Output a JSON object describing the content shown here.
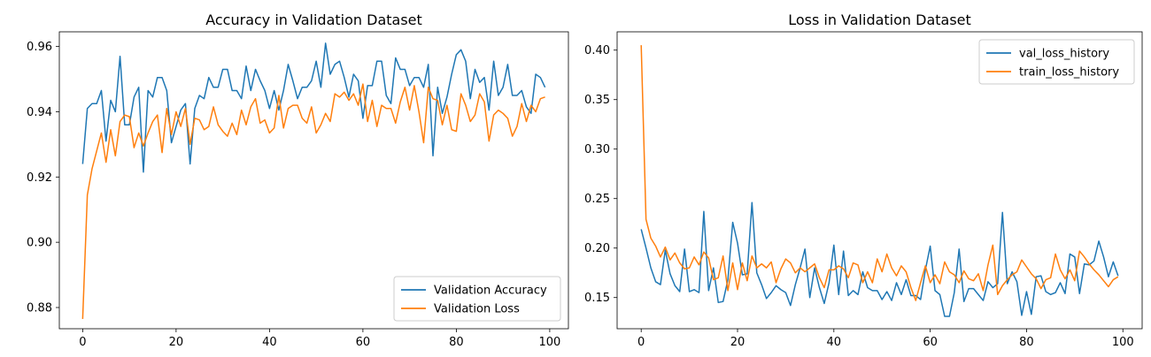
{
  "chart_data": [
    {
      "type": "line",
      "title": "Accuracy in Validation Dataset",
      "xlabel": "",
      "ylabel": "",
      "xlim": [
        -5,
        104
      ],
      "ylim": [
        0.8735,
        0.9645
      ],
      "xticks": [
        "0",
        "20",
        "40",
        "60",
        "80",
        "100"
      ],
      "yticks": [
        "0.88",
        "0.90",
        "0.92",
        "0.94",
        "0.96"
      ],
      "legend_position": "lower-right",
      "series": [
        {
          "name": "Validation Accuracy",
          "color": "#1f77b4",
          "x": [
            0,
            1,
            2,
            3,
            4,
            5,
            6,
            7,
            8,
            9,
            10,
            11,
            12,
            13,
            14,
            15,
            16,
            17,
            18,
            19,
            20,
            21,
            22,
            23,
            24,
            25,
            26,
            27,
            28,
            29,
            30,
            31,
            32,
            33,
            34,
            35,
            36,
            37,
            38,
            39,
            40,
            41,
            42,
            43,
            44,
            45,
            46,
            47,
            48,
            49,
            50,
            51,
            52,
            53,
            54,
            55,
            56,
            57,
            58,
            59,
            60,
            61,
            62,
            63,
            64,
            65,
            66,
            67,
            68,
            69,
            70,
            71,
            72,
            73,
            74,
            75,
            76,
            77,
            78,
            79,
            80,
            81,
            82,
            83,
            84,
            85,
            86,
            87,
            88,
            89,
            90,
            91,
            92,
            93,
            94,
            95,
            96,
            97,
            98,
            99
          ],
          "values": [
            0.924,
            0.941,
            0.9425,
            0.9425,
            0.9465,
            0.931,
            0.9435,
            0.94,
            0.957,
            0.936,
            0.936,
            0.9445,
            0.9475,
            0.9215,
            0.9465,
            0.9445,
            0.9505,
            0.9505,
            0.9465,
            0.9305,
            0.9355,
            0.9405,
            0.9425,
            0.924,
            0.941,
            0.945,
            0.944,
            0.9505,
            0.9475,
            0.9475,
            0.953,
            0.953,
            0.9465,
            0.9465,
            0.944,
            0.954,
            0.9465,
            0.953,
            0.9495,
            0.9465,
            0.941,
            0.9465,
            0.9405,
            0.9465,
            0.9545,
            0.9495,
            0.944,
            0.9475,
            0.9475,
            0.9495,
            0.9555,
            0.9475,
            0.961,
            0.9515,
            0.9545,
            0.9555,
            0.9505,
            0.9445,
            0.9515,
            0.9495,
            0.938,
            0.948,
            0.948,
            0.9555,
            0.9555,
            0.945,
            0.9425,
            0.9565,
            0.953,
            0.953,
            0.948,
            0.9505,
            0.9505,
            0.9475,
            0.9545,
            0.9265,
            0.9475,
            0.9395,
            0.9445,
            0.9515,
            0.9575,
            0.959,
            0.9555,
            0.944,
            0.953,
            0.949,
            0.9505,
            0.9405,
            0.9555,
            0.945,
            0.9475,
            0.9545,
            0.945,
            0.945,
            0.9465,
            0.9415,
            0.9395,
            0.9515,
            0.9505,
            0.9475
          ]
        },
        {
          "name": "Validation Loss",
          "color": "#ff7f0e",
          "x": [
            0,
            1,
            2,
            3,
            4,
            5,
            6,
            7,
            8,
            9,
            10,
            11,
            12,
            13,
            14,
            15,
            16,
            17,
            18,
            19,
            20,
            21,
            22,
            23,
            24,
            25,
            26,
            27,
            28,
            29,
            30,
            31,
            32,
            33,
            34,
            35,
            36,
            37,
            38,
            39,
            40,
            41,
            42,
            43,
            44,
            45,
            46,
            47,
            48,
            49,
            50,
            51,
            52,
            53,
            54,
            55,
            56,
            57,
            58,
            59,
            60,
            61,
            62,
            63,
            64,
            65,
            66,
            67,
            68,
            69,
            70,
            71,
            72,
            73,
            74,
            75,
            76,
            77,
            78,
            79,
            80,
            81,
            82,
            83,
            84,
            85,
            86,
            87,
            88,
            89,
            90,
            91,
            92,
            93,
            94,
            95,
            96,
            97,
            98,
            99
          ],
          "values": [
            0.8765,
            0.9145,
            0.9225,
            0.928,
            0.9335,
            0.9245,
            0.9345,
            0.9265,
            0.937,
            0.939,
            0.9385,
            0.929,
            0.9335,
            0.9295,
            0.9335,
            0.937,
            0.939,
            0.9275,
            0.941,
            0.933,
            0.94,
            0.9355,
            0.941,
            0.93,
            0.938,
            0.9375,
            0.9345,
            0.9355,
            0.9415,
            0.936,
            0.934,
            0.9325,
            0.9365,
            0.933,
            0.9405,
            0.936,
            0.9415,
            0.944,
            0.9365,
            0.9375,
            0.9335,
            0.935,
            0.945,
            0.935,
            0.941,
            0.942,
            0.942,
            0.938,
            0.9365,
            0.9415,
            0.9335,
            0.936,
            0.9395,
            0.937,
            0.9455,
            0.9445,
            0.946,
            0.9435,
            0.9455,
            0.942,
            0.9485,
            0.937,
            0.9435,
            0.9355,
            0.942,
            0.941,
            0.941,
            0.9365,
            0.943,
            0.9475,
            0.9405,
            0.948,
            0.94,
            0.9305,
            0.9475,
            0.944,
            0.9435,
            0.936,
            0.942,
            0.9345,
            0.934,
            0.9455,
            0.942,
            0.937,
            0.939,
            0.9455,
            0.943,
            0.931,
            0.939,
            0.9405,
            0.9395,
            0.938,
            0.9325,
            0.9355,
            0.9425,
            0.937,
            0.942,
            0.94,
            0.944,
            0.9445
          ]
        }
      ]
    },
    {
      "type": "line",
      "title": "Loss in Validation Dataset",
      "xlabel": "",
      "ylabel": "",
      "xlim": [
        -5,
        104
      ],
      "ylim": [
        0.1185,
        0.4185
      ],
      "xticks": [
        "0",
        "20",
        "40",
        "60",
        "80",
        "100"
      ],
      "yticks": [
        "0.15",
        "0.20",
        "0.25",
        "0.30",
        "0.35",
        "0.40"
      ],
      "legend_position": "upper-right",
      "series": [
        {
          "name": "val_loss_history",
          "color": "#1f77b4",
          "x": [
            0,
            1,
            2,
            3,
            4,
            5,
            6,
            7,
            8,
            9,
            10,
            11,
            12,
            13,
            14,
            15,
            16,
            17,
            18,
            19,
            20,
            21,
            22,
            23,
            24,
            25,
            26,
            27,
            28,
            29,
            30,
            31,
            32,
            33,
            34,
            35,
            36,
            37,
            38,
            39,
            40,
            41,
            42,
            43,
            44,
            45,
            46,
            47,
            48,
            49,
            50,
            51,
            52,
            53,
            54,
            55,
            56,
            57,
            58,
            59,
            60,
            61,
            62,
            63,
            64,
            65,
            66,
            67,
            68,
            69,
            70,
            71,
            72,
            73,
            74,
            75,
            76,
            77,
            78,
            79,
            80,
            81,
            82,
            83,
            84,
            85,
            86,
            87,
            88,
            89,
            90,
            91,
            92,
            93,
            94,
            95,
            96,
            97,
            98,
            99
          ],
          "values": [
            0.219,
            0.2,
            0.18,
            0.166,
            0.163,
            0.198,
            0.174,
            0.162,
            0.156,
            0.199,
            0.156,
            0.158,
            0.155,
            0.237,
            0.157,
            0.18,
            0.145,
            0.146,
            0.168,
            0.226,
            0.205,
            0.173,
            0.174,
            0.246,
            0.175,
            0.163,
            0.149,
            0.155,
            0.162,
            0.158,
            0.155,
            0.142,
            0.163,
            0.18,
            0.199,
            0.15,
            0.18,
            0.16,
            0.144,
            0.165,
            0.203,
            0.153,
            0.197,
            0.152,
            0.157,
            0.153,
            0.176,
            0.16,
            0.157,
            0.157,
            0.148,
            0.156,
            0.147,
            0.165,
            0.153,
            0.168,
            0.152,
            0.152,
            0.148,
            0.178,
            0.202,
            0.157,
            0.153,
            0.131,
            0.131,
            0.155,
            0.199,
            0.146,
            0.159,
            0.159,
            0.153,
            0.147,
            0.166,
            0.16,
            0.164,
            0.236,
            0.164,
            0.176,
            0.166,
            0.132,
            0.156,
            0.133,
            0.171,
            0.172,
            0.156,
            0.153,
            0.155,
            0.165,
            0.154,
            0.194,
            0.191,
            0.154,
            0.184,
            0.183,
            0.187,
            0.207,
            0.191,
            0.171,
            0.186,
            0.172
          ]
        },
        {
          "name": "train_loss_history",
          "color": "#ff7f0e",
          "x": [
            0,
            1,
            2,
            3,
            4,
            5,
            6,
            7,
            8,
            9,
            10,
            11,
            12,
            13,
            14,
            15,
            16,
            17,
            18,
            19,
            20,
            21,
            22,
            23,
            24,
            25,
            26,
            27,
            28,
            29,
            30,
            31,
            32,
            33,
            34,
            35,
            36,
            37,
            38,
            39,
            40,
            41,
            42,
            43,
            44,
            45,
            46,
            47,
            48,
            49,
            50,
            51,
            52,
            53,
            54,
            55,
            56,
            57,
            58,
            59,
            60,
            61,
            62,
            63,
            64,
            65,
            66,
            67,
            68,
            69,
            70,
            71,
            72,
            73,
            74,
            75,
            76,
            77,
            78,
            79,
            80,
            81,
            82,
            83,
            84,
            85,
            86,
            87,
            88,
            89,
            90,
            91,
            92,
            93,
            94,
            95,
            96,
            97,
            98,
            99
          ],
          "values": [
            0.405,
            0.229,
            0.21,
            0.202,
            0.191,
            0.201,
            0.188,
            0.195,
            0.185,
            0.179,
            0.18,
            0.191,
            0.183,
            0.196,
            0.19,
            0.168,
            0.17,
            0.192,
            0.157,
            0.185,
            0.158,
            0.185,
            0.167,
            0.192,
            0.18,
            0.184,
            0.18,
            0.186,
            0.165,
            0.179,
            0.189,
            0.185,
            0.175,
            0.18,
            0.176,
            0.18,
            0.184,
            0.17,
            0.16,
            0.178,
            0.178,
            0.182,
            0.179,
            0.17,
            0.185,
            0.183,
            0.165,
            0.176,
            0.165,
            0.189,
            0.176,
            0.194,
            0.18,
            0.172,
            0.182,
            0.176,
            0.16,
            0.147,
            0.165,
            0.182,
            0.165,
            0.173,
            0.164,
            0.186,
            0.176,
            0.173,
            0.165,
            0.177,
            0.169,
            0.167,
            0.174,
            0.157,
            0.183,
            0.203,
            0.153,
            0.162,
            0.168,
            0.173,
            0.176,
            0.188,
            0.181,
            0.174,
            0.169,
            0.159,
            0.168,
            0.17,
            0.194,
            0.178,
            0.169,
            0.178,
            0.167,
            0.197,
            0.191,
            0.184,
            0.178,
            0.173,
            0.167,
            0.161,
            0.168,
            0.171
          ]
        }
      ]
    }
  ]
}
